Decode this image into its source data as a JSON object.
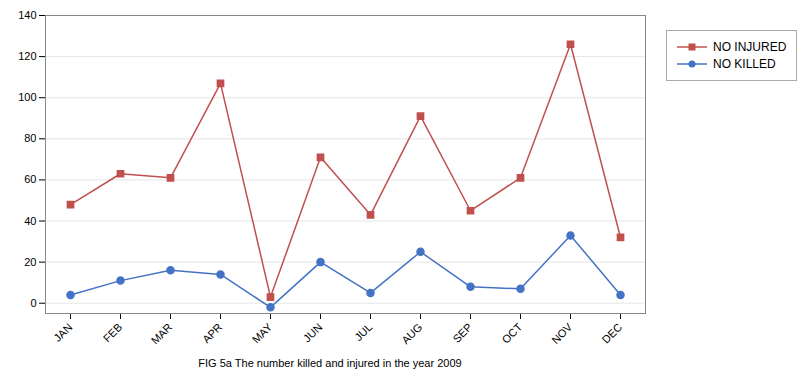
{
  "chart_data": {
    "type": "line",
    "caption": "FIG 5a  The number killed and injured in the year 2009",
    "categories": [
      "JAN",
      "FEB",
      "MAR",
      "APR",
      "MAY",
      "JUN",
      "JUL",
      "AUG",
      "SEP",
      "OCT",
      "NOV",
      "DEC"
    ],
    "series": [
      {
        "name": "NO INJURED",
        "color": "#C0504D",
        "marker": "square",
        "values": [
          48,
          63,
          61,
          107,
          3,
          71,
          43,
          91,
          45,
          61,
          126,
          32
        ]
      },
      {
        "name": "NO KILLED",
        "color": "#4472C4",
        "marker": "circle",
        "values": [
          4,
          11,
          16,
          14,
          -2,
          20,
          5,
          25,
          8,
          7,
          33,
          4
        ]
      }
    ],
    "ylim": [
      -5,
      140
    ],
    "yticks": [
      0,
      20,
      40,
      60,
      80,
      100,
      120,
      140
    ],
    "grid": true,
    "legend": "upper right"
  }
}
